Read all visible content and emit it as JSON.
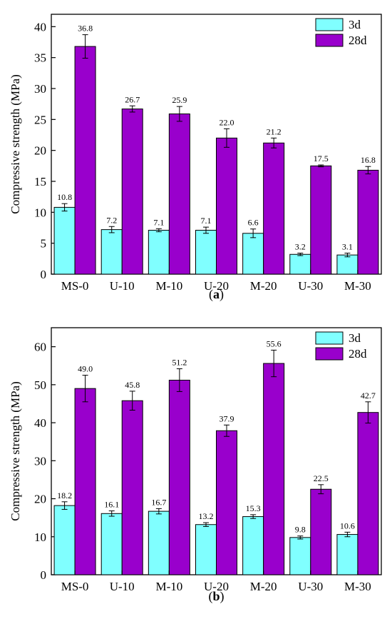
{
  "colors": {
    "series_3d": "#80ffff",
    "series_28d": "#9900cc",
    "axis": "#000000"
  },
  "chart_data": [
    {
      "type": "bar",
      "panel_label": "a",
      "categories": [
        "MS-0",
        "U-10",
        "M-10",
        "U-20",
        "M-20",
        "U-30",
        "M-30"
      ],
      "ylabel": "Compressive strength (MPa)",
      "xlabel": "",
      "ylim": [
        0,
        42
      ],
      "yticks": [
        0,
        5,
        10,
        15,
        20,
        25,
        30,
        35,
        40
      ],
      "grid": false,
      "legend_position": "top-right",
      "series": [
        {
          "name": "3d",
          "color": "#80ffff",
          "values": [
            10.8,
            7.2,
            7.1,
            7.1,
            6.6,
            3.2,
            3.1
          ],
          "labels": [
            "10.8",
            "7.2",
            "7.1",
            "7.1",
            "6.6",
            "3.2",
            "3.1"
          ],
          "errors": [
            0.6,
            0.5,
            0.25,
            0.5,
            0.7,
            0.2,
            0.3
          ]
        },
        {
          "name": "28d",
          "color": "#9900cc",
          "values": [
            36.8,
            26.7,
            25.9,
            22.0,
            21.2,
            17.5,
            16.8
          ],
          "labels": [
            "36.8",
            "26.7",
            "25.9",
            "22.0",
            "21.2",
            "17.5",
            "16.8"
          ],
          "errors": [
            1.9,
            0.5,
            1.2,
            1.5,
            0.8,
            0.15,
            0.6
          ]
        }
      ]
    },
    {
      "type": "bar",
      "panel_label": "b",
      "categories": [
        "MS-0",
        "U-10",
        "M-10",
        "U-20",
        "M-20",
        "U-30",
        "M-30"
      ],
      "ylabel": "Compressive strength (MPa)",
      "xlabel": "",
      "ylim": [
        0,
        65
      ],
      "yticks": [
        0,
        10,
        20,
        30,
        40,
        50,
        60
      ],
      "grid": false,
      "legend_position": "top-right",
      "series": [
        {
          "name": "3d",
          "color": "#80ffff",
          "values": [
            18.2,
            16.1,
            16.7,
            13.2,
            15.3,
            9.8,
            10.6
          ],
          "labels": [
            "18.2",
            "16.1",
            "16.7",
            "13.2",
            "15.3",
            "9.8",
            "10.6"
          ],
          "errors": [
            1.0,
            0.7,
            0.7,
            0.5,
            0.5,
            0.4,
            0.6
          ]
        },
        {
          "name": "28d",
          "color": "#9900cc",
          "values": [
            49.0,
            45.8,
            51.2,
            37.9,
            55.6,
            22.5,
            42.7
          ],
          "labels": [
            "49.0",
            "45.8",
            "51.2",
            "37.9",
            "55.6",
            "22.5",
            "42.7"
          ],
          "errors": [
            3.5,
            2.5,
            3.0,
            1.5,
            3.5,
            1.2,
            2.8
          ]
        }
      ]
    }
  ]
}
